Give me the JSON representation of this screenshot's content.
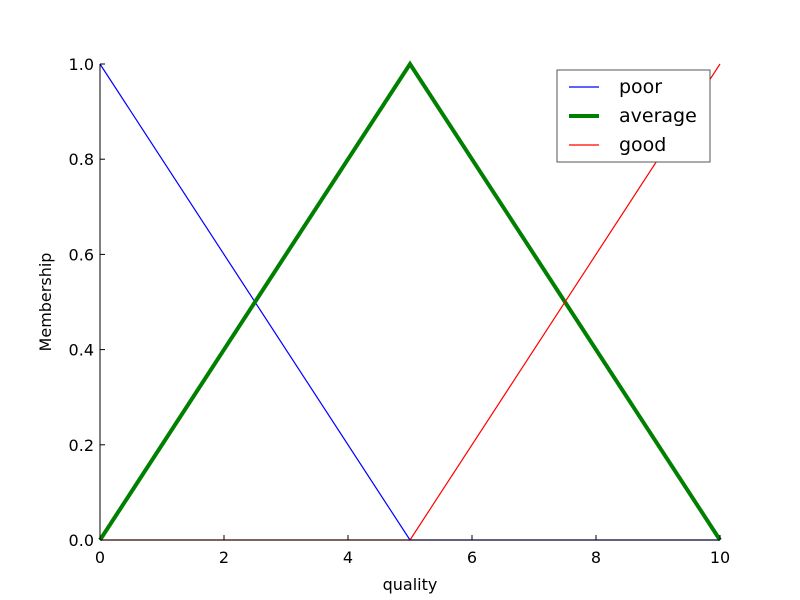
{
  "chart_data": {
    "type": "line",
    "title": "",
    "xlabel": "quality",
    "ylabel": "Membership",
    "xlim": [
      0,
      10
    ],
    "ylim": [
      0,
      1
    ],
    "x_ticks": [
      0,
      2,
      4,
      6,
      8,
      10
    ],
    "y_ticks": [
      0.0,
      0.2,
      0.4,
      0.6,
      0.8,
      1.0
    ],
    "x_tick_labels": [
      "0",
      "2",
      "4",
      "6",
      "8",
      "10"
    ],
    "y_tick_labels": [
      "0.0",
      "0.2",
      "0.4",
      "0.6",
      "0.8",
      "1.0"
    ],
    "grid": false,
    "legend_position": "top-right",
    "series": [
      {
        "name": "poor",
        "color": "#0000ff",
        "line_weight": "thin",
        "points": [
          [
            0,
            1.0
          ],
          [
            5,
            0.0
          ],
          [
            10,
            0.0
          ]
        ]
      },
      {
        "name": "average",
        "color": "#008000",
        "line_weight": "thick",
        "points": [
          [
            0,
            0.0
          ],
          [
            5,
            1.0
          ],
          [
            10,
            0.0
          ]
        ]
      },
      {
        "name": "good",
        "color": "#ff0000",
        "line_weight": "thin",
        "points": [
          [
            0,
            0.0
          ],
          [
            5,
            0.0
          ],
          [
            10,
            1.0
          ]
        ]
      }
    ]
  }
}
